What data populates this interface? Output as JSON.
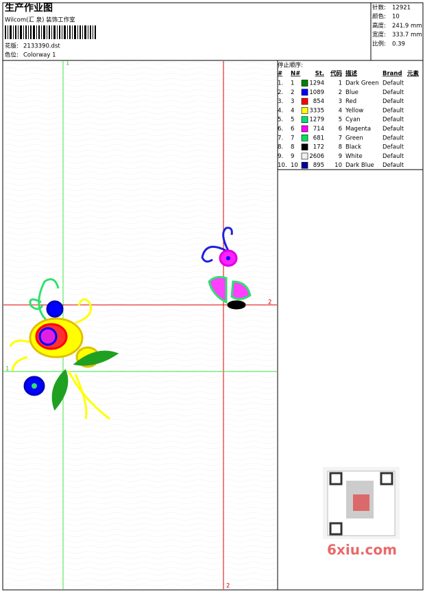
{
  "header": {
    "title": "生产作业图",
    "studio": "Wilcom(汇 泉) 装饰工作室",
    "design_label": "花版:",
    "design": "2133390.dst",
    "colorway_label": "色位:",
    "colorway": "Colorway 1"
  },
  "stats": [
    {
      "label": "针数:",
      "value": "12921"
    },
    {
      "label": "颜色:",
      "value": "10"
    },
    {
      "label": "高度:",
      "value": "241.9 mm"
    },
    {
      "label": "宽度:",
      "value": "333.7 mm"
    },
    {
      "label": "比例:",
      "value": "0.39"
    }
  ],
  "guides": {
    "v1": "1",
    "h2": "2",
    "h1": "1",
    "v2": "2"
  },
  "table": {
    "title": "停止顺序:",
    "columns": [
      "#",
      "N#",
      "St.",
      "代码",
      "描述",
      "Brand",
      "元素"
    ],
    "rows": [
      {
        "index": "1.",
        "n": "1",
        "color": "#008000",
        "st": "1294",
        "code": "1",
        "desc": "Dark Green",
        "brand": "Default"
      },
      {
        "index": "2.",
        "n": "2",
        "color": "#0000ff",
        "st": "1089",
        "code": "2",
        "desc": "Blue",
        "brand": "Default"
      },
      {
        "index": "3.",
        "n": "3",
        "color": "#ff0000",
        "st": "854",
        "code": "3",
        "desc": "Red",
        "brand": "Default"
      },
      {
        "index": "4.",
        "n": "4",
        "color": "#ffff00",
        "st": "3335",
        "code": "4",
        "desc": "Yellow",
        "brand": "Default"
      },
      {
        "index": "5.",
        "n": "5",
        "color": "#00e070",
        "st": "1279",
        "code": "5",
        "desc": "Cyan",
        "brand": "Default"
      },
      {
        "index": "6.",
        "n": "6",
        "color": "#ff00ff",
        "st": "714",
        "code": "6",
        "desc": "Magenta",
        "brand": "Default"
      },
      {
        "index": "7.",
        "n": "7",
        "color": "#00e060",
        "st": "681",
        "code": "7",
        "desc": "Green",
        "brand": "Default"
      },
      {
        "index": "8.",
        "n": "8",
        "color": "#000000",
        "st": "172",
        "code": "8",
        "desc": "Black",
        "brand": "Default"
      },
      {
        "index": "9.",
        "n": "9",
        "color": "#f0f0f0",
        "st": "2606",
        "code": "9",
        "desc": "White",
        "brand": "Default"
      },
      {
        "index": "10.",
        "n": "10",
        "color": "#0000a0",
        "st": "895",
        "code": "10",
        "desc": "Dark Blue",
        "brand": "Default"
      }
    ]
  },
  "watermark": "6xiu.com"
}
